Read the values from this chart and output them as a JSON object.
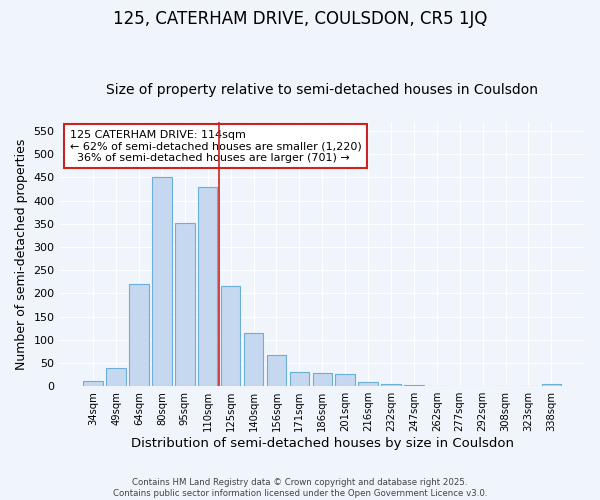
{
  "title": "125, CATERHAM DRIVE, COULSDON, CR5 1JQ",
  "subtitle": "Size of property relative to semi-detached houses in Coulsdon",
  "xlabel": "Distribution of semi-detached houses by size in Coulsdon",
  "ylabel": "Number of semi-detached properties",
  "bar_labels": [
    "34sqm",
    "49sqm",
    "64sqm",
    "80sqm",
    "95sqm",
    "110sqm",
    "125sqm",
    "140sqm",
    "156sqm",
    "171sqm",
    "186sqm",
    "201sqm",
    "216sqm",
    "232sqm",
    "247sqm",
    "262sqm",
    "277sqm",
    "292sqm",
    "308sqm",
    "323sqm",
    "338sqm"
  ],
  "bar_values": [
    12,
    40,
    220,
    452,
    352,
    430,
    215,
    115,
    68,
    30,
    28,
    27,
    9,
    5,
    3,
    0,
    0,
    0,
    0,
    0,
    5
  ],
  "bar_color": "#c5d8f0",
  "bar_edge_color": "#6baed6",
  "subject_line_color": "#cc2222",
  "annotation_text": "125 CATERHAM DRIVE: 114sqm\n← 62% of semi-detached houses are smaller (1,220)\n  36% of semi-detached houses are larger (701) →",
  "annotation_box_color": "#ffffff",
  "annotation_box_edge_color": "#cc2222",
  "ylim": [
    0,
    570
  ],
  "yticks": [
    0,
    50,
    100,
    150,
    200,
    250,
    300,
    350,
    400,
    450,
    500,
    550
  ],
  "footer_text": "Contains HM Land Registry data © Crown copyright and database right 2025.\nContains public sector information licensed under the Open Government Licence v3.0.",
  "background_color": "#f0f4fb",
  "grid_color": "#ffffff",
  "title_fontsize": 12,
  "subtitle_fontsize": 10,
  "xlabel_fontsize": 9.5,
  "ylabel_fontsize": 9
}
